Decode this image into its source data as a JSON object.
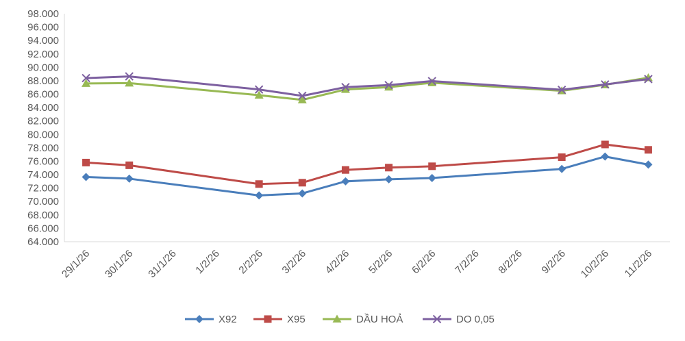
{
  "chart_data": {
    "type": "line",
    "title": "",
    "xlabel": "",
    "ylabel": "",
    "ylim": [
      64000,
      98000
    ],
    "ytick_step": 2000,
    "ytick_labels": [
      "64.000",
      "66.000",
      "68.000",
      "70.000",
      "72.000",
      "74.000",
      "76.000",
      "78.000",
      "80.000",
      "82.000",
      "84.000",
      "86.000",
      "88.000",
      "90.000",
      "92.000",
      "94.000",
      "96.000",
      "98.000"
    ],
    "categories": [
      "29/1/26",
      "30/1/26",
      "31/1/26",
      "1/2/26",
      "2/2/26",
      "3/2/26",
      "4/2/26",
      "5/2/26",
      "6/2/26",
      "7/2/26",
      "8/2/26",
      "9/2/26",
      "10/2/26",
      "11/2/26"
    ],
    "grid": false,
    "legend_position": "bottom",
    "series": [
      {
        "name": "X92",
        "color": "#4A7EBB",
        "marker": "diamond",
        "values": [
          73650,
          73400,
          null,
          null,
          70900,
          71200,
          73000,
          73300,
          73500,
          null,
          null,
          74850,
          76700,
          75500
        ]
      },
      {
        "name": "X95",
        "color": "#BE4B48",
        "marker": "square",
        "values": [
          75800,
          75400,
          null,
          null,
          72600,
          72800,
          74700,
          75050,
          75250,
          null,
          null,
          76600,
          78500,
          77700
        ]
      },
      {
        "name": "DẦU HOẢ",
        "color": "#98B954",
        "marker": "triangle",
        "values": [
          87600,
          87650,
          null,
          null,
          85850,
          85150,
          86700,
          87050,
          87700,
          null,
          null,
          86500,
          87400,
          88450
        ]
      },
      {
        "name": "DO 0,05",
        "color": "#7D60A0",
        "marker": "x",
        "values": [
          88400,
          88650,
          null,
          null,
          86700,
          85750,
          87050,
          87350,
          87950,
          null,
          null,
          86650,
          87450,
          88250
        ]
      }
    ]
  }
}
